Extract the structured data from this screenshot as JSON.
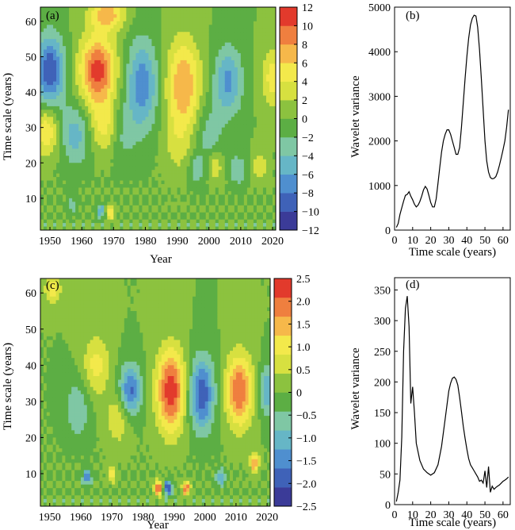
{
  "colors": {
    "colormap": [
      "#3b3b98",
      "#3f62b8",
      "#4f8fcf",
      "#66b6c6",
      "#7fc7a4",
      "#5cae44",
      "#8cc23f",
      "#d7e040",
      "#f3e94b",
      "#f6b84a",
      "#ef7f3f",
      "#e23a2c"
    ],
    "line": "#000000",
    "axes": "#000000"
  },
  "chart_data": [
    {
      "panel_label": "(a)",
      "type": "heatmap",
      "subtype": "wavelet real-part contour map",
      "xlabel": "Year",
      "ylabel": "Time scale (years)",
      "xlim": [
        1947,
        2021
      ],
      "ylim": [
        1,
        64
      ],
      "xticks": [
        1950,
        1960,
        1970,
        1980,
        1990,
        2000,
        2010,
        2020
      ],
      "yticks": [
        10,
        20,
        30,
        40,
        50,
        60
      ],
      "colorbar": {
        "min": -12,
        "max": 12,
        "ticks": [
          12,
          10,
          8,
          6,
          4,
          2,
          0,
          -2,
          -4,
          -6,
          -8,
          -10,
          -12
        ],
        "tick_labels": [
          "12",
          "10",
          "8",
          "6",
          "4",
          "2",
          "0",
          "−2",
          "−4",
          "−6",
          "−8",
          "−10",
          "−12"
        ]
      },
      "blobs": [
        {
          "x": 1965,
          "y": 46,
          "amp": 11,
          "sx": 4.0,
          "sy": 7
        },
        {
          "x": 1949,
          "y": 29,
          "amp": 6,
          "sx": 2.6,
          "sy": 5
        },
        {
          "x": 1967,
          "y": 30,
          "amp": 4.5,
          "sx": 3.0,
          "sy": 5
        },
        {
          "x": 1958,
          "y": 28,
          "amp": -5,
          "sx": 3.2,
          "sy": 6
        },
        {
          "x": 1950,
          "y": 46,
          "amp": -10,
          "sx": 3.2,
          "sy": 7
        },
        {
          "x": 1979,
          "y": 42,
          "amp": -7.5,
          "sx": 3.5,
          "sy": 9
        },
        {
          "x": 1973,
          "y": 28,
          "amp": -2.5,
          "sx": 2.8,
          "sy": 6
        },
        {
          "x": 1992,
          "y": 42,
          "amp": 8,
          "sx": 3.8,
          "sy": 9
        },
        {
          "x": 1990,
          "y": 25,
          "amp": 2.5,
          "sx": 3.0,
          "sy": 6
        },
        {
          "x": 2006,
          "y": 43,
          "amp": -6.5,
          "sx": 3.2,
          "sy": 7
        },
        {
          "x": 2000,
          "y": 28,
          "amp": -3,
          "sx": 3.0,
          "sy": 6
        },
        {
          "x": 2020,
          "y": 44,
          "amp": 5,
          "sx": 2.4,
          "sy": 6
        },
        {
          "x": 1968,
          "y": 62,
          "amp": 7,
          "sx": 4.0,
          "sy": 3
        },
        {
          "x": 2002,
          "y": 19,
          "amp": 4,
          "sx": 1.6,
          "sy": 2.8
        },
        {
          "x": 2016,
          "y": 19,
          "amp": 4,
          "sx": 1.6,
          "sy": 2.8
        },
        {
          "x": 2009,
          "y": 18,
          "amp": -4,
          "sx": 1.8,
          "sy": 3
        },
        {
          "x": 1996,
          "y": 18,
          "amp": -3.5,
          "sx": 1.8,
          "sy": 3
        },
        {
          "x": 1969,
          "y": 6,
          "amp": 6,
          "sx": 0.9,
          "sy": 1.5
        },
        {
          "x": 1966,
          "y": 6,
          "amp": -6,
          "sx": 0.9,
          "sy": 1.5
        },
        {
          "x": 1957,
          "y": 8,
          "amp": -3,
          "sx": 1.2,
          "sy": 2
        }
      ]
    },
    {
      "panel_label": "(b)",
      "type": "line",
      "xlabel": "Time scale (years)",
      "ylabel": "Wavelet variance",
      "xlim": [
        0,
        64
      ],
      "ylim": [
        0,
        5000
      ],
      "xticks": [
        0,
        10,
        20,
        30,
        40,
        50,
        60
      ],
      "yticks": [
        0,
        1000,
        2000,
        3000,
        4000,
        5000
      ],
      "x": [
        1,
        2,
        3,
        4,
        5,
        6,
        7,
        8,
        9,
        10,
        11,
        12,
        13,
        14,
        15,
        16,
        17,
        18,
        19,
        20,
        21,
        22,
        23,
        24,
        25,
        26,
        27,
        28,
        29,
        30,
        31,
        32,
        33,
        34,
        35,
        36,
        37,
        38,
        39,
        40,
        41,
        42,
        43,
        44,
        45,
        46,
        47,
        48,
        49,
        50,
        51,
        52,
        53,
        54,
        55,
        56,
        57,
        58,
        59,
        60,
        61,
        62,
        63
      ],
      "y": [
        60,
        150,
        350,
        500,
        650,
        780,
        800,
        860,
        760,
        680,
        580,
        520,
        560,
        640,
        760,
        900,
        980,
        920,
        780,
        620,
        520,
        520,
        700,
        1050,
        1400,
        1750,
        2000,
        2150,
        2250,
        2250,
        2150,
        2000,
        1850,
        1700,
        1700,
        1850,
        2300,
        2850,
        3400,
        3900,
        4300,
        4600,
        4750,
        4820,
        4800,
        4550,
        4050,
        3400,
        2700,
        2000,
        1550,
        1300,
        1180,
        1150,
        1160,
        1200,
        1300,
        1450,
        1620,
        1800,
        2000,
        2300,
        2700
      ]
    },
    {
      "panel_label": "(c)",
      "type": "heatmap",
      "subtype": "wavelet real-part contour map",
      "xlabel": "Year",
      "ylabel": "Time scale (years)",
      "xlim": [
        1947,
        2021
      ],
      "ylim": [
        1,
        64
      ],
      "xticks": [
        1950,
        1960,
        1970,
        1980,
        1990,
        2000,
        2010,
        2020
      ],
      "yticks": [
        10,
        20,
        30,
        40,
        50,
        60
      ],
      "colorbar": {
        "min": -2.5,
        "max": 2.5,
        "ticks": [
          2.5,
          2.0,
          1.5,
          1.0,
          0.5,
          0,
          -0.5,
          -1.0,
          -1.5,
          -2.0,
          -2.5
        ],
        "tick_labels": [
          "2.5",
          "2.0",
          "1.5",
          "1.0",
          "0.5",
          "0",
          "−0.5",
          "−1.0",
          "−1.5",
          "−2.0",
          "−2.5"
        ]
      },
      "blobs": [
        {
          "x": 1989,
          "y": 33,
          "amp": 2.4,
          "sx": 3.2,
          "sy": 8
        },
        {
          "x": 2011,
          "y": 33,
          "amp": 2.1,
          "sx": 3.0,
          "sy": 7
        },
        {
          "x": 1999,
          "y": 32,
          "amp": -2.0,
          "sx": 2.8,
          "sy": 7
        },
        {
          "x": 1976,
          "y": 33,
          "amp": -1.8,
          "sx": 2.4,
          "sy": 5
        },
        {
          "x": 1965,
          "y": 40,
          "amp": 1.0,
          "sx": 3.0,
          "sy": 6
        },
        {
          "x": 1972,
          "y": 25,
          "amp": 0.8,
          "sx": 2.8,
          "sy": 5
        },
        {
          "x": 1959,
          "y": 28,
          "amp": -0.8,
          "sx": 2.8,
          "sy": 6
        },
        {
          "x": 2020,
          "y": 33,
          "amp": -1.2,
          "sx": 1.6,
          "sy": 5
        },
        {
          "x": 1951,
          "y": 61,
          "amp": 1.0,
          "sx": 2.0,
          "sy": 3
        },
        {
          "x": 2016,
          "y": 13,
          "amp": 1.8,
          "sx": 1.0,
          "sy": 2
        },
        {
          "x": 1985,
          "y": 6,
          "amp": 2.3,
          "sx": 0.9,
          "sy": 1.4
        },
        {
          "x": 1988,
          "y": 6,
          "amp": -2.3,
          "sx": 0.9,
          "sy": 1.4
        },
        {
          "x": 1994,
          "y": 6,
          "amp": 2.0,
          "sx": 0.9,
          "sy": 1.4
        },
        {
          "x": 1962,
          "y": 9,
          "amp": -1.5,
          "sx": 1.0,
          "sy": 1.6
        },
        {
          "x": 1970,
          "y": 10,
          "amp": 1.2,
          "sx": 1.0,
          "sy": 1.6
        },
        {
          "x": 2005,
          "y": 9,
          "amp": -1.4,
          "sx": 1.0,
          "sy": 1.6
        }
      ]
    },
    {
      "panel_label": "(d)",
      "type": "line",
      "xlabel": "Time scale (years)",
      "ylabel": "Wavelet variance",
      "xlim": [
        0,
        64
      ],
      "ylim": [
        0,
        370
      ],
      "xticks": [
        0,
        10,
        20,
        30,
        40,
        50,
        60
      ],
      "yticks": [
        0,
        50,
        100,
        150,
        200,
        250,
        300,
        350
      ],
      "x": [
        1,
        2,
        3,
        4,
        5,
        6,
        7,
        8,
        9,
        10,
        11,
        12,
        14,
        16,
        18,
        20,
        22,
        24,
        26,
        28,
        30,
        31,
        32,
        33,
        34,
        35,
        36,
        37,
        38,
        39,
        40,
        41,
        42,
        43,
        44,
        45,
        46,
        47,
        48,
        49,
        50,
        51,
        52,
        53,
        54,
        55,
        56,
        57,
        58,
        59,
        60,
        61,
        62,
        63
      ],
      "y": [
        5,
        20,
        40,
        110,
        250,
        320,
        340,
        290,
        165,
        192,
        150,
        100,
        72,
        58,
        52,
        48,
        52,
        65,
        95,
        140,
        185,
        198,
        206,
        208,
        204,
        195,
        175,
        152,
        128,
        108,
        90,
        75,
        65,
        60,
        55,
        50,
        45,
        38,
        40,
        35,
        55,
        28,
        62,
        20,
        30,
        25,
        28,
        30,
        32,
        35,
        38,
        40,
        42,
        45
      ]
    }
  ]
}
